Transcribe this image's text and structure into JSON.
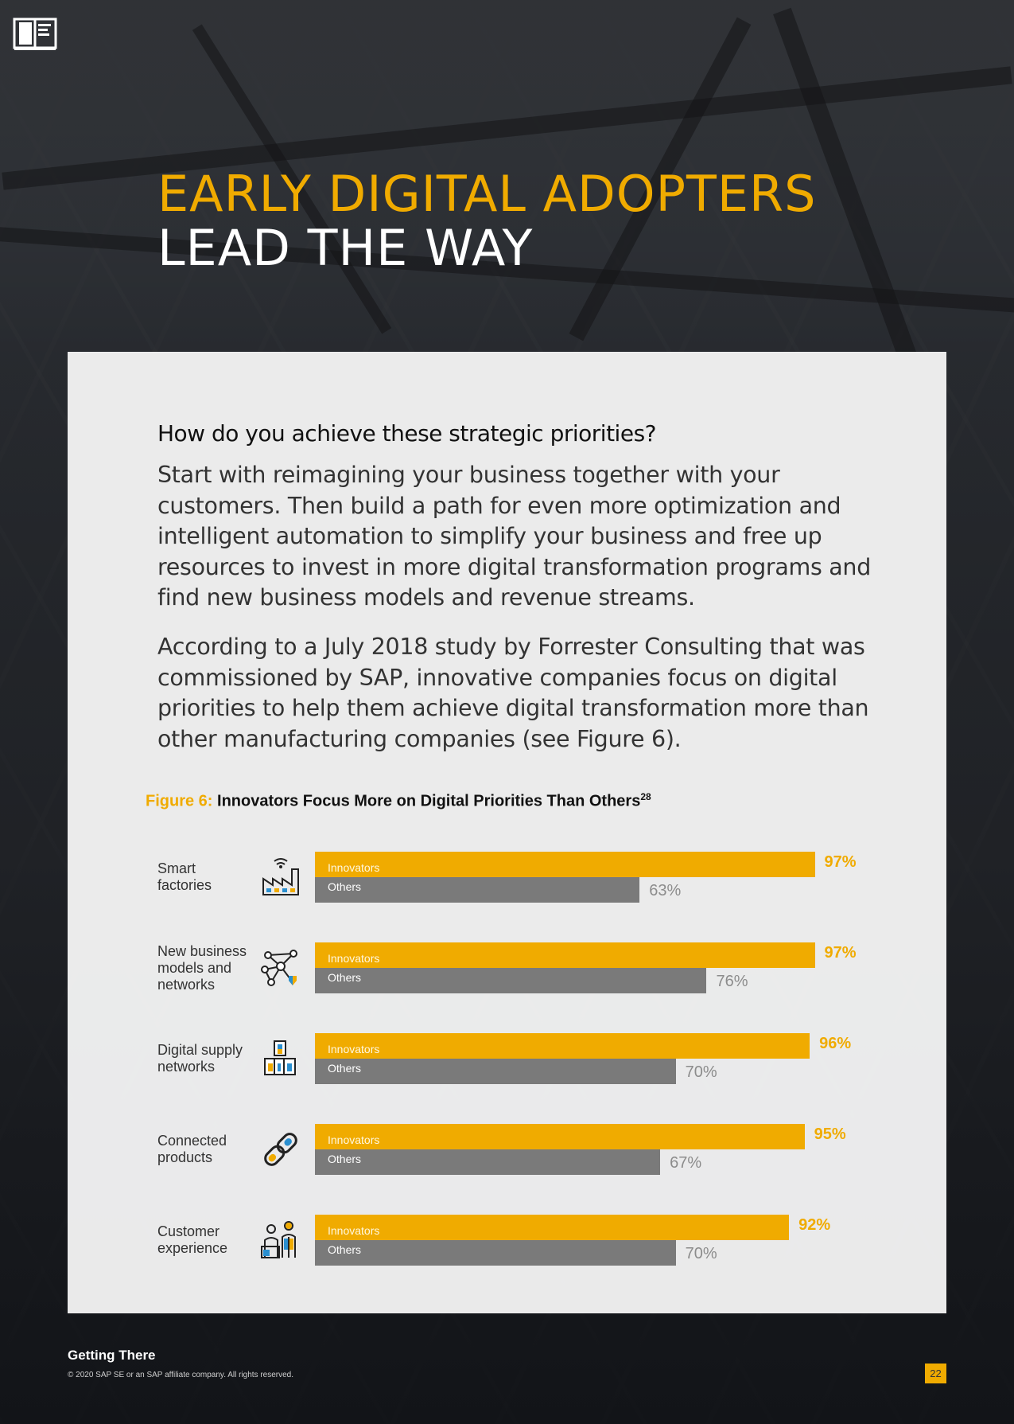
{
  "header": {
    "title_line1": "EARLY DIGITAL ADOPTERS",
    "title_line2": "LEAD THE WAY"
  },
  "icons": {
    "logo": "book-icon"
  },
  "content": {
    "question": "How do you achieve these strategic priorities?",
    "paragraph1": "Start with reimagining your business together with your customers. Then build a path for even more optimization and intelligent automation to simplify your business and free up resources to invest in more digital transformation programs and find new business models and revenue streams.",
    "paragraph2": "According to a July 2018 study by Forrester Consulting that was commissioned by SAP, innovative companies focus on digital priorities to help them achieve digital transformation more than other manufacturing companies (see Figure 6)."
  },
  "figure": {
    "label": "Figure 6:",
    "title": "Innovators Focus More on Digital Priorities Than Others",
    "footnote": "28"
  },
  "colors": {
    "accent": "#f0ab00",
    "others": "#7a7a7a"
  },
  "chart_data": {
    "type": "bar",
    "orientation": "horizontal",
    "categories": [
      "Smart factories",
      "New business models and networks",
      "Digital supply networks",
      "Connected products",
      "Customer experience"
    ],
    "category_labels": [
      "Smart\nfactories",
      "New business\nmodels and\nnetworks",
      "Digital supply\nnetworks",
      "Connected\nproducts",
      "Customer\nexperience"
    ],
    "category_icons": [
      "factory-icon",
      "network-icon",
      "supply-blocks-icon",
      "chain-link-icon",
      "people-icon"
    ],
    "series": [
      {
        "name": "Innovators",
        "values": [
          97,
          97,
          96,
          95,
          92
        ],
        "labels": [
          "97%",
          "97%",
          "96%",
          "95%",
          "92%"
        ]
      },
      {
        "name": "Others",
        "values": [
          63,
          76,
          70,
          67,
          70
        ],
        "labels": [
          "63%",
          "76%",
          "70%",
          "67%",
          "70%"
        ]
      }
    ],
    "xlim": [
      0,
      100
    ],
    "unit": "%"
  },
  "footer": {
    "section": "Getting There",
    "copyright": "© 2020 SAP SE or an SAP affiliate company. All rights reserved.",
    "page_number": "22"
  }
}
